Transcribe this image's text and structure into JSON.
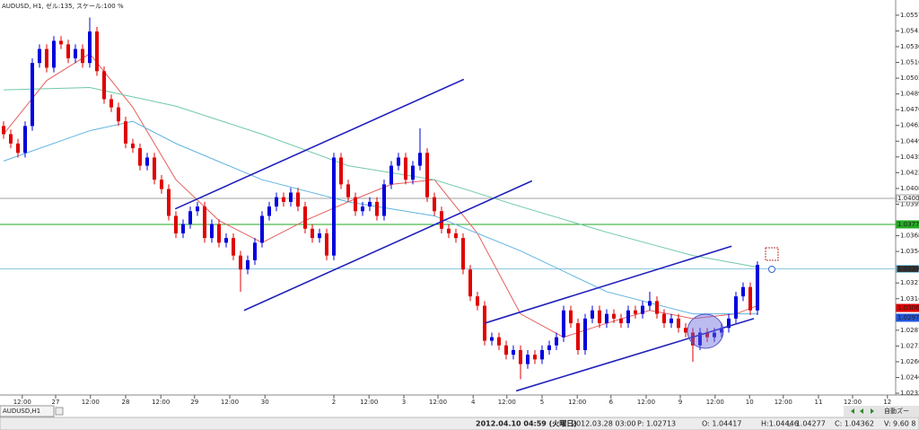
{
  "chart_data": {
    "type": "candlestick",
    "title": "AUDUSD, H1, ゼル:135, スケール:100 %",
    "symbol_tab": "AUDUSD,H1",
    "up_color": "#0000dd",
    "down_color": "#e00000",
    "open": [
      1.0462,
      1.0455,
      1.0447,
      1.0439,
      1.0462,
      1.0516,
      1.0528,
      1.0512,
      1.0535,
      1.0532,
      1.052,
      1.0528,
      1.0516,
      1.0543,
      1.0509,
      1.0485,
      1.0478,
      1.0466,
      1.0447,
      1.0443,
      1.0428,
      1.0435,
      1.0416,
      1.0408,
      1.0385,
      1.037,
      1.0378,
      1.0389,
      1.0393,
      1.0366,
      1.0378,
      1.0362,
      1.0366,
      1.0351,
      1.0339,
      1.0347,
      1.0362,
      1.0385,
      1.0393,
      1.0401,
      1.0397,
      1.0405,
      1.0393,
      1.0374,
      1.0366,
      1.037,
      1.0351,
      1.0435,
      1.0412,
      1.0401,
      1.0389,
      1.0393,
      1.0397,
      1.0385,
      1.0412,
      1.0428,
      1.0435,
      1.0416,
      1.0428,
      1.0439,
      1.0401,
      1.0389,
      1.0374,
      1.037,
      1.0366,
      1.0339,
      1.0316,
      1.0308,
      1.0278,
      1.0281,
      1.0274,
      1.0266,
      1.027,
      1.0258,
      1.0266,
      1.0262,
      1.027,
      1.0274,
      1.0281,
      1.0304,
      1.0293,
      1.027,
      1.0297,
      1.0304,
      1.0293,
      1.0301,
      1.0297,
      1.0293,
      1.0304,
      1.0301,
      1.0308,
      1.0312,
      1.0301,
      1.0293,
      1.0297,
      1.0289,
      1.0285,
      1.0274,
      1.0285,
      1.0281,
      1.0285,
      1.0289,
      1.0297,
      1.0316,
      1.0324,
      1.0304
    ],
    "high": [
      1.0466,
      1.0459,
      1.0451,
      1.0466,
      1.052,
      1.0532,
      1.0532,
      1.0539,
      1.0539,
      1.0536,
      1.0532,
      1.0532,
      1.0555,
      1.0547,
      1.0513,
      1.0489,
      1.0482,
      1.047,
      1.0451,
      1.0447,
      1.0439,
      1.0439,
      1.042,
      1.0412,
      1.0389,
      1.0382,
      1.0393,
      1.0397,
      1.0397,
      1.0382,
      1.0382,
      1.037,
      1.037,
      1.0355,
      1.0351,
      1.0366,
      1.0389,
      1.0397,
      1.0405,
      1.0405,
      1.0409,
      1.0409,
      1.0397,
      1.0378,
      1.0374,
      1.0374,
      1.0439,
      1.0439,
      1.0416,
      1.0405,
      1.0397,
      1.0401,
      1.0401,
      1.0416,
      1.0432,
      1.0439,
      1.0439,
      1.0432,
      1.046,
      1.0443,
      1.0405,
      1.0393,
      1.0378,
      1.0374,
      1.037,
      1.0343,
      1.032,
      1.0312,
      1.0285,
      1.0285,
      1.0278,
      1.0274,
      1.0274,
      1.027,
      1.027,
      1.0274,
      1.0278,
      1.0285,
      1.0308,
      1.0308,
      1.0297,
      1.0301,
      1.0308,
      1.0308,
      1.0305,
      1.0305,
      1.0301,
      1.0308,
      1.0308,
      1.0312,
      1.032,
      1.0316,
      1.0305,
      1.0301,
      1.0301,
      1.0293,
      1.0289,
      1.0289,
      1.0289,
      1.0289,
      1.0293,
      1.0301,
      1.032,
      1.0328,
      1.0328,
      1.0346
    ],
    "low": [
      1.0451,
      1.0443,
      1.0435,
      1.0435,
      1.0458,
      1.0512,
      1.0508,
      1.0508,
      1.0528,
      1.0516,
      1.0516,
      1.0512,
      1.0512,
      1.0505,
      1.0481,
      1.0474,
      1.0462,
      1.0443,
      1.0439,
      1.0424,
      1.0424,
      1.0412,
      1.0404,
      1.0381,
      1.0366,
      1.0366,
      1.0374,
      1.0385,
      1.0362,
      1.0362,
      1.0358,
      1.0358,
      1.0347,
      1.032,
      1.0335,
      1.0343,
      1.0358,
      1.0381,
      1.0389,
      1.0393,
      1.0393,
      1.0389,
      1.037,
      1.0362,
      1.0362,
      1.0347,
      1.0347,
      1.0408,
      1.0397,
      1.0385,
      1.0385,
      1.0389,
      1.0381,
      1.0381,
      1.0408,
      1.0424,
      1.0412,
      1.0412,
      1.0424,
      1.0397,
      1.0385,
      1.037,
      1.0366,
      1.0362,
      1.0335,
      1.0312,
      1.0304,
      1.0274,
      1.0274,
      1.027,
      1.0262,
      1.0262,
      1.0245,
      1.0254,
      1.0258,
      1.0258,
      1.0266,
      1.027,
      1.0277,
      1.0289,
      1.0266,
      1.0266,
      1.0293,
      1.0289,
      1.0289,
      1.0293,
      1.0289,
      1.0289,
      1.0297,
      1.0297,
      1.0304,
      1.0297,
      1.0289,
      1.0289,
      1.0285,
      1.0281,
      1.026,
      1.027,
      1.0277,
      1.0277,
      1.0281,
      1.0285,
      1.0293,
      1.0312,
      1.03,
      1.03
    ],
    "close": [
      1.0455,
      1.0447,
      1.0439,
      1.0462,
      1.0516,
      1.0528,
      1.0512,
      1.0535,
      1.0532,
      1.052,
      1.0528,
      1.0516,
      1.0543,
      1.0509,
      1.0485,
      1.0478,
      1.0466,
      1.0447,
      1.0443,
      1.0428,
      1.0435,
      1.0416,
      1.0408,
      1.0385,
      1.037,
      1.0378,
      1.0389,
      1.0393,
      1.0366,
      1.0378,
      1.0362,
      1.0366,
      1.0351,
      1.0339,
      1.0347,
      1.0362,
      1.0385,
      1.0393,
      1.0401,
      1.0397,
      1.0405,
      1.0393,
      1.0374,
      1.0366,
      1.037,
      1.0351,
      1.0435,
      1.0412,
      1.0401,
      1.0389,
      1.0393,
      1.0397,
      1.0385,
      1.0412,
      1.0428,
      1.0435,
      1.0416,
      1.0428,
      1.0439,
      1.0401,
      1.0389,
      1.0374,
      1.037,
      1.0366,
      1.0339,
      1.0316,
      1.0308,
      1.0278,
      1.0281,
      1.0274,
      1.0266,
      1.027,
      1.0258,
      1.0266,
      1.0262,
      1.027,
      1.0274,
      1.0281,
      1.0304,
      1.0293,
      1.027,
      1.0297,
      1.0304,
      1.0293,
      1.0301,
      1.0297,
      1.0293,
      1.0304,
      1.0301,
      1.0308,
      1.0312,
      1.0301,
      1.0293,
      1.0297,
      1.0289,
      1.0285,
      1.0274,
      1.0285,
      1.0281,
      1.0285,
      1.0289,
      1.0297,
      1.0316,
      1.0324,
      1.0304,
      1.0343
    ],
    "moving_averages": [
      {
        "color": "#e86060",
        "x": [
          0,
          6,
          12,
          18,
          24,
          30,
          36,
          42,
          48,
          54,
          60,
          66,
          72,
          78,
          84,
          90,
          96,
          102,
          105
        ],
        "values": [
          1.0455,
          1.0501,
          1.0524,
          1.0478,
          1.0416,
          1.0381,
          1.0362,
          1.0381,
          1.0397,
          1.0412,
          1.0416,
          1.037,
          1.0301,
          1.0281,
          1.0293,
          1.0304,
          1.0297,
          1.0301,
          1.0308
        ]
      },
      {
        "color": "#5fb4e0",
        "x": [
          0,
          12,
          18,
          24,
          36,
          48,
          60,
          72,
          84,
          96,
          105
        ],
        "values": [
          1.0432,
          1.0458,
          1.0466,
          1.0447,
          1.0416,
          1.0397,
          1.0385,
          1.0355,
          1.032,
          1.0301,
          1.0301
        ]
      },
      {
        "color": "#70c8a8",
        "x": [
          0,
          12,
          24,
          36,
          48,
          60,
          72,
          84,
          96,
          105
        ],
        "values": [
          1.0493,
          1.0495,
          1.0479,
          1.0455,
          1.0428,
          1.0416,
          1.0393,
          1.0371,
          1.0351,
          1.0341
        ]
      }
    ],
    "trendline_color": "#2222bb",
    "trendlines": [
      {
        "x": [
          23.9,
          64.1
        ],
        "y": [
          1.0391,
          1.0502
        ]
      },
      {
        "x": [
          33.5,
          73.6
        ],
        "y": [
          1.0304,
          1.0415
        ]
      },
      {
        "x": [
          67,
          101.4
        ],
        "y": [
          1.0293,
          1.0359
        ]
      },
      {
        "x": [
          71.4,
          104.5
        ],
        "y": [
          1.0235,
          1.0297
        ]
      }
    ],
    "hlines": [
      {
        "value": 1.04,
        "label": "1.04000",
        "color": "#a0a0a0",
        "fill": "#ffffff",
        "text_color": "#000000",
        "line": true
      },
      {
        "value": 1.03777,
        "label": "1.03777",
        "color": "#22aa22",
        "fill": "#22aa22",
        "text_color": "#000000",
        "line": true
      },
      {
        "value": 1.03396,
        "label": "1.03396",
        "color": "#8cc8e0",
        "fill": "#333333",
        "text_color": "#ffffff",
        "line": true
      },
      {
        "value": 1.03061,
        "label": "1.03061",
        "color": "#e00000",
        "fill": "#e00000",
        "text_color": "#ffffff",
        "line": false
      },
      {
        "value": 1.02977,
        "label": "1.02977",
        "color": "#2255dd",
        "fill": "#2255dd",
        "text_color": "#ffffff",
        "line": false
      }
    ],
    "xlim": [
      -0.5,
      124.5
    ],
    "xticks": [
      {
        "value": 2.6,
        "label": "12:00"
      },
      {
        "value": 7.25,
        "label": "27"
      },
      {
        "value": 12.1,
        "label": "12:00"
      },
      {
        "value": 17,
        "label": "28"
      },
      {
        "value": 21.9,
        "label": "12:00"
      },
      {
        "value": 26.6,
        "label": "29"
      },
      {
        "value": 31.5,
        "label": "12:00"
      },
      {
        "value": 36.4,
        "label": "30"
      },
      {
        "value": 46,
        "label": "2"
      },
      {
        "value": 50.9,
        "label": "12:00"
      },
      {
        "value": 55.75,
        "label": "3"
      },
      {
        "value": 60.5,
        "label": "12:00"
      },
      {
        "value": 65.4,
        "label": "4"
      },
      {
        "value": 70.1,
        "label": "12:00"
      },
      {
        "value": 75,
        "label": "5"
      },
      {
        "value": 79.9,
        "label": "12:00"
      },
      {
        "value": 84.6,
        "label": "6"
      },
      {
        "value": 89.5,
        "label": "12:00"
      },
      {
        "value": 94.25,
        "label": "9"
      },
      {
        "value": 99.1,
        "label": "12:00"
      },
      {
        "value": 103.9,
        "label": "10"
      },
      {
        "value": 108.6,
        "label": "12:00"
      },
      {
        "value": 113.5,
        "label": "11"
      },
      {
        "value": 118.25,
        "label": "12:00"
      },
      {
        "value": 123.1,
        "label": "12"
      }
    ],
    "ylim": [
      1.02315,
      1.057
    ],
    "yticks": [
      {
        "value": 1.0557,
        "label": "1.05570"
      },
      1.05435,
      {
        "value": 1.053,
        "label": "1.05300"
      },
      1.05165,
      {
        "value": 1.0503,
        "label": "1.05030"
      },
      1.04895,
      {
        "value": 1.0476,
        "label": "1.04760"
      },
      1.04625,
      {
        "value": 1.0449,
        "label": "1.04490"
      },
      1.04355,
      {
        "value": 1.0422,
        "label": "1.04220"
      },
      1.04085,
      {
        "value": 1.0395,
        "label": "1.03950"
      },
      {
        "value": 1.0368,
        "label": "1.03680"
      },
      1.03545,
      1.03275,
      {
        "value": 1.0314,
        "label": "1.03140"
      },
      {
        "value": 1.0287,
        "label": "1.02870"
      },
      1.02735,
      {
        "value": 1.026,
        "label": "1.02600"
      },
      1.02465,
      {
        "value": 1.0233,
        "label": "1.02330"
      }
    ]
  },
  "status_bar": {
    "time": "2012.04.10 04:59 (火曜日)",
    "cursor_time": "2012.03.28 03:00",
    "price": "P: 1.02713",
    "open": "O: 1.04417",
    "high": "H:1.04446",
    "low": "L: 1.04277",
    "close": "C: 1.04362",
    "volume": "V: 9.60 8",
    "auto_zoom": "自動ズー"
  }
}
